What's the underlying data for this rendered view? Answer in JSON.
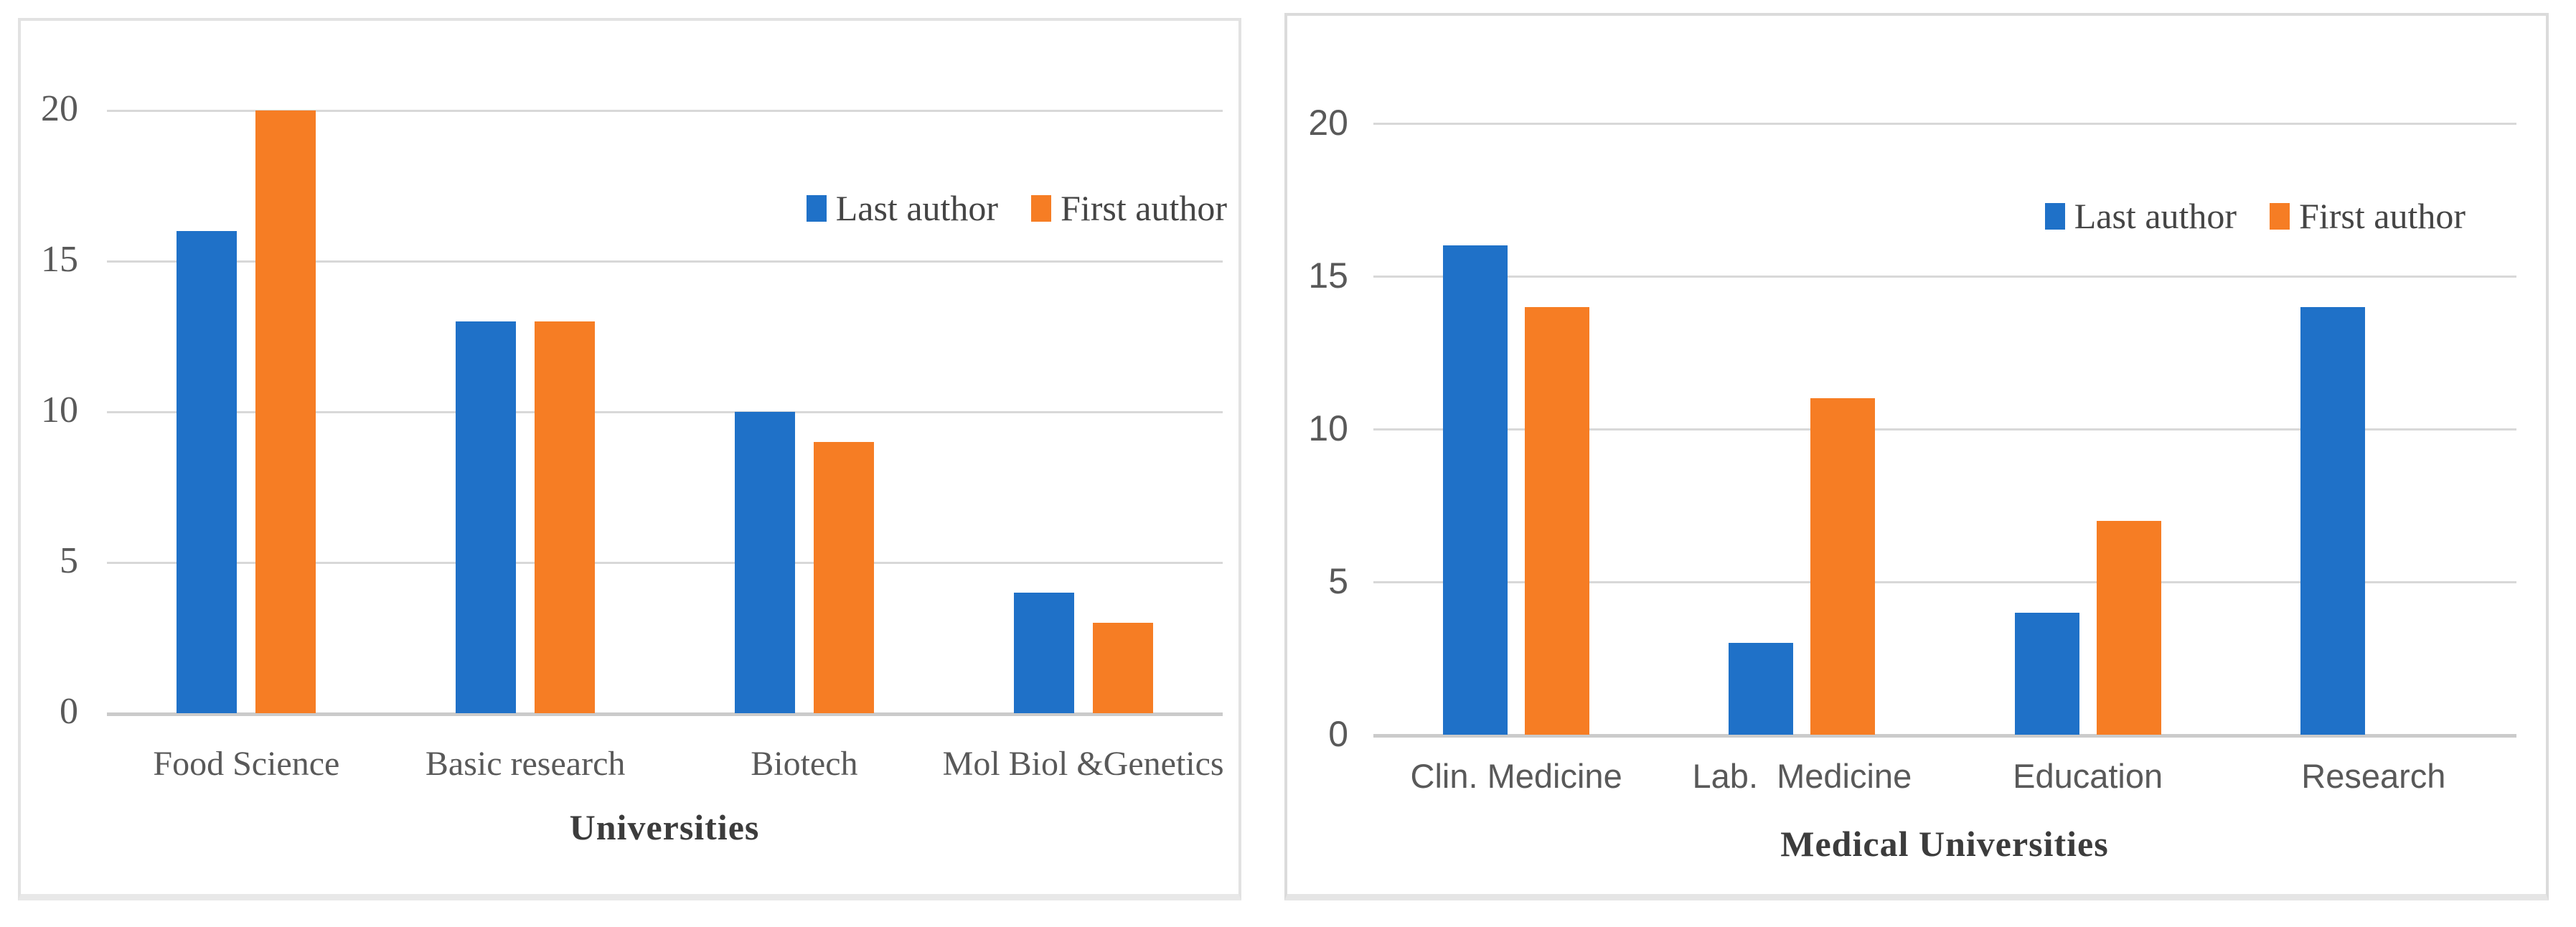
{
  "figure": {
    "description": "Two grouped bar charts comparing last-author and first-author counts"
  },
  "colors": {
    "series": [
      "#1F71C8",
      "#F67D24"
    ],
    "last_author_blue": "#1F71C8",
    "first_author_orange": "#F67D24",
    "gridline": "#D8D8D8",
    "axis_line": "#CBCBCB",
    "tick_text": "#595959",
    "title_text": "#3C3C3C",
    "panel_border": "#DBDBDB"
  },
  "legend": {
    "items": [
      {
        "label": "Last author",
        "color": "#1F71C8"
      },
      {
        "label": "First author",
        "color": "#F67D24"
      }
    ]
  },
  "chart_data": [
    {
      "type": "bar",
      "title": "Universities",
      "categories": [
        "Food Science",
        "Basic research",
        "Biotech",
        "Mol Biol &Genetics"
      ],
      "series": [
        {
          "name": "Last author",
          "values": [
            16,
            13,
            10,
            4
          ]
        },
        {
          "name": "First author",
          "values": [
            20,
            13,
            9,
            3
          ]
        }
      ],
      "legend": [
        "Last author",
        "First author"
      ],
      "xlabel": "Universities",
      "ylabel": "",
      "ylim": [
        0,
        20
      ],
      "yticks": [
        0,
        5,
        10,
        15,
        20
      ],
      "grid": true,
      "legend_position": "inside-top-right"
    },
    {
      "type": "bar",
      "title": "Medical Universities",
      "categories": [
        "Clin. Medicine",
        "Lab.  Medicine",
        "Education",
        "Research"
      ],
      "series": [
        {
          "name": "Last author",
          "values": [
            16,
            3,
            4,
            14
          ]
        },
        {
          "name": "First author",
          "values": [
            14,
            11,
            7,
            null
          ]
        }
      ],
      "legend": [
        "Last author",
        "First author"
      ],
      "xlabel": "Medical Universities",
      "ylabel": "",
      "ylim": [
        0,
        20
      ],
      "yticks": [
        0,
        5,
        10,
        15,
        20
      ],
      "grid": true,
      "legend_position": "inside-top-right"
    }
  ]
}
